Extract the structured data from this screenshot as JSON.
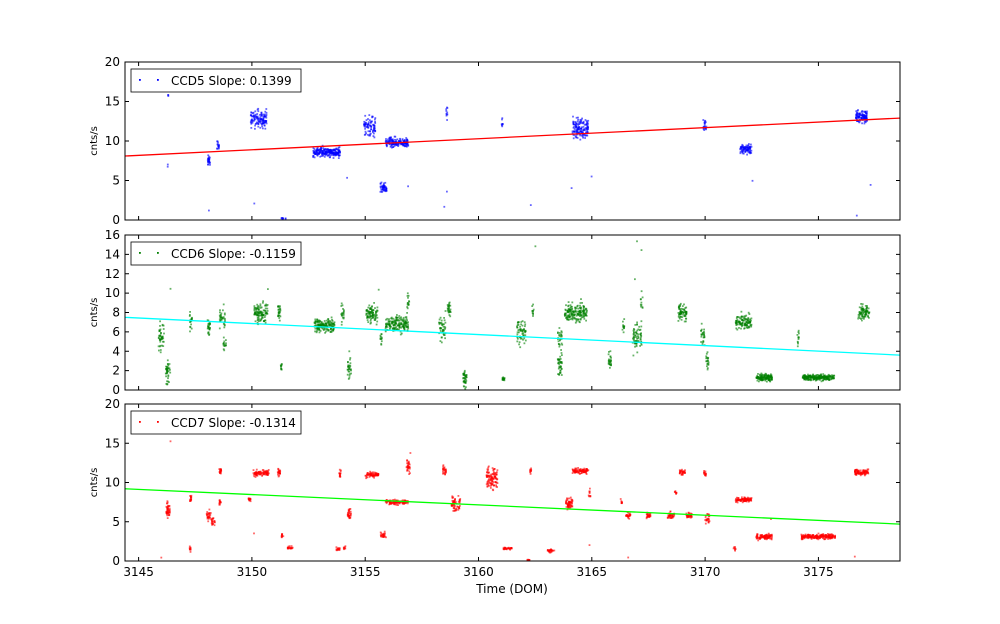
{
  "chart_data": {
    "type": "scatter",
    "xlabel": "Time (DOM)",
    "xlim": [
      3144.4,
      3178.6
    ],
    "xticks": [
      3145,
      3150,
      3155,
      3160,
      3165,
      3170,
      3175
    ],
    "cluster_format": "[x_center, y_center, x_spread, y_spread, n_points]",
    "panels": [
      {
        "name": "CCD5",
        "legend": "CCD5 Slope: 0.1399",
        "legend_position": "top-left",
        "ylabel": "cnts/s",
        "ylim": [
          0,
          20
        ],
        "yticks": [
          0,
          5,
          10,
          15,
          20
        ],
        "point_color": "#0000ff",
        "fit_color": "#ff0000",
        "fit": {
          "x0": 3144.4,
          "y0": 8.1,
          "x1": 3178.6,
          "y1": 12.9
        },
        "clusters": [
          [
            3146.3,
            15.7,
            0.02,
            0.2,
            3
          ],
          [
            3146.3,
            6.8,
            0.02,
            0.3,
            2
          ],
          [
            3148.1,
            7.5,
            0.08,
            0.5,
            25
          ],
          [
            3148.5,
            9.5,
            0.05,
            0.5,
            15
          ],
          [
            3150.3,
            12.8,
            0.35,
            0.9,
            120
          ],
          [
            3151.4,
            0.2,
            0.1,
            0.05,
            8
          ],
          [
            3153.3,
            8.6,
            0.6,
            0.5,
            220
          ],
          [
            3155.2,
            11.8,
            0.25,
            1.1,
            80
          ],
          [
            3155.8,
            4.0,
            0.15,
            0.5,
            50
          ],
          [
            3156.4,
            9.8,
            0.5,
            0.5,
            160
          ],
          [
            3158.6,
            13.5,
            0.03,
            0.6,
            10
          ],
          [
            3161.05,
            12.3,
            0.03,
            0.4,
            8
          ],
          [
            3164.5,
            11.6,
            0.35,
            1.0,
            140
          ],
          [
            3170.0,
            12.0,
            0.08,
            0.6,
            20
          ],
          [
            3171.8,
            9.0,
            0.25,
            0.6,
            80
          ],
          [
            3176.9,
            13.1,
            0.25,
            0.7,
            110
          ],
          [
            3148.1,
            1.2,
            0.01,
            0.05,
            1
          ],
          [
            3150.1,
            2.1,
            0.01,
            0.05,
            1
          ],
          [
            3154.2,
            5.3,
            0.01,
            0.05,
            1
          ],
          [
            3158.5,
            1.6,
            0.01,
            0.05,
            1
          ],
          [
            3158.6,
            3.6,
            0.01,
            0.05,
            1
          ],
          [
            3162.3,
            1.9,
            0.01,
            0.05,
            1
          ],
          [
            3164.1,
            4.1,
            0.01,
            0.05,
            1
          ],
          [
            3165.0,
            5.5,
            0.01,
            0.05,
            1
          ],
          [
            3156.9,
            4.3,
            0.01,
            0.05,
            1
          ],
          [
            3176.7,
            0.6,
            0.01,
            0.05,
            1
          ],
          [
            3177.3,
            4.4,
            0.01,
            0.05,
            1
          ],
          [
            3172.1,
            5.0,
            0.01,
            0.05,
            1
          ]
        ]
      },
      {
        "name": "CCD6",
        "legend": "CCD6 Slope: -0.1159",
        "legend_position": "top-left",
        "ylabel": "cnts/s",
        "ylim": [
          0,
          16
        ],
        "yticks": [
          0,
          2,
          4,
          6,
          8,
          10,
          12,
          14,
          16
        ],
        "point_color": "#008000",
        "fit_color": "#00ffff",
        "fit": {
          "x0": 3144.4,
          "y0": 7.5,
          "x1": 3178.6,
          "y1": 3.6
        },
        "clusters": [
          [
            3146.0,
            5.5,
            0.12,
            1.5,
            45
          ],
          [
            3146.3,
            1.8,
            0.1,
            1.0,
            40
          ],
          [
            3147.3,
            7.0,
            0.06,
            0.6,
            20
          ],
          [
            3148.1,
            6.5,
            0.06,
            0.7,
            25
          ],
          [
            3148.7,
            7.5,
            0.12,
            0.8,
            35
          ],
          [
            3148.8,
            4.5,
            0.06,
            0.6,
            15
          ],
          [
            3150.4,
            8.0,
            0.3,
            0.8,
            110
          ],
          [
            3151.2,
            8.3,
            0.06,
            0.8,
            25
          ],
          [
            3151.3,
            2.4,
            0.03,
            0.3,
            10
          ],
          [
            3153.2,
            6.6,
            0.45,
            0.6,
            160
          ],
          [
            3154.0,
            8.0,
            0.06,
            0.8,
            20
          ],
          [
            3154.3,
            2.3,
            0.08,
            1.0,
            30
          ],
          [
            3155.3,
            7.8,
            0.25,
            0.7,
            90
          ],
          [
            3155.7,
            5.5,
            0.04,
            0.6,
            12
          ],
          [
            3156.4,
            6.8,
            0.5,
            0.7,
            170
          ],
          [
            3156.9,
            9.0,
            0.05,
            0.9,
            15
          ],
          [
            3158.4,
            6.5,
            0.15,
            1.2,
            45
          ],
          [
            3158.7,
            8.3,
            0.08,
            0.6,
            25
          ],
          [
            3159.4,
            1.2,
            0.08,
            0.8,
            40
          ],
          [
            3161.1,
            1.2,
            0.05,
            0.2,
            15
          ],
          [
            3161.9,
            6.0,
            0.2,
            1.0,
            60
          ],
          [
            3162.4,
            8.0,
            0.04,
            0.5,
            10
          ],
          [
            3163.6,
            2.6,
            0.1,
            1.0,
            40
          ],
          [
            3163.6,
            5.5,
            0.1,
            0.8,
            25
          ],
          [
            3164.3,
            8.0,
            0.5,
            0.8,
            170
          ],
          [
            3165.8,
            3.0,
            0.06,
            0.8,
            25
          ],
          [
            3166.4,
            6.5,
            0.05,
            0.6,
            12
          ],
          [
            3167.0,
            5.5,
            0.2,
            1.4,
            70
          ],
          [
            3167.2,
            9.0,
            0.05,
            0.8,
            10
          ],
          [
            3169.0,
            8.0,
            0.18,
            0.7,
            70
          ],
          [
            3169.9,
            5.5,
            0.08,
            0.9,
            25
          ],
          [
            3170.1,
            3.0,
            0.06,
            0.7,
            20
          ],
          [
            3171.7,
            7.0,
            0.35,
            0.6,
            110
          ],
          [
            3172.6,
            1.3,
            0.35,
            0.3,
            130
          ],
          [
            3174.1,
            5.0,
            0.04,
            0.9,
            12
          ],
          [
            3175.0,
            1.3,
            0.7,
            0.25,
            230
          ],
          [
            3177.0,
            8.0,
            0.25,
            0.6,
            80
          ],
          [
            3146.4,
            10.5,
            0.01,
            0.05,
            1
          ],
          [
            3162.5,
            14.8,
            0.01,
            0.05,
            1
          ],
          [
            3167.0,
            15.3,
            0.01,
            0.05,
            1
          ],
          [
            3167.2,
            14.5,
            0.01,
            0.05,
            1
          ],
          [
            3166.9,
            11.5,
            0.01,
            0.05,
            1
          ],
          [
            3150.7,
            10.4,
            0.01,
            0.05,
            1
          ],
          [
            3155.6,
            10.3,
            0.01,
            0.05,
            1
          ]
        ]
      },
      {
        "name": "CCD7",
        "legend": "CCD7 Slope: -0.1314",
        "legend_position": "top-left",
        "ylabel": "cnts/s",
        "ylim": [
          0,
          20
        ],
        "yticks": [
          0,
          5,
          10,
          15,
          20
        ],
        "point_color": "#ff0000",
        "fit_color": "#00ff00",
        "fit": {
          "x0": 3144.4,
          "y0": 9.2,
          "x1": 3178.6,
          "y1": 4.7
        },
        "clusters": [
          [
            3146.3,
            6.5,
            0.08,
            0.8,
            45
          ],
          [
            3147.3,
            8.0,
            0.05,
            0.4,
            15
          ],
          [
            3147.3,
            1.5,
            0.05,
            0.3,
            10
          ],
          [
            3148.1,
            5.8,
            0.1,
            0.6,
            30
          ],
          [
            3148.3,
            5.0,
            0.08,
            0.6,
            20
          ],
          [
            3148.6,
            11.5,
            0.05,
            0.3,
            20
          ],
          [
            3148.6,
            7.5,
            0.04,
            0.4,
            12
          ],
          [
            3149.9,
            7.8,
            0.05,
            0.3,
            15
          ],
          [
            3150.4,
            11.2,
            0.35,
            0.3,
            90
          ],
          [
            3151.2,
            11.3,
            0.06,
            0.4,
            25
          ],
          [
            3151.35,
            3.3,
            0.04,
            0.2,
            10
          ],
          [
            3151.7,
            1.7,
            0.12,
            0.15,
            20
          ],
          [
            3153.8,
            1.5,
            0.08,
            0.15,
            15
          ],
          [
            3154.1,
            1.7,
            0.05,
            0.2,
            8
          ],
          [
            3153.9,
            11.2,
            0.05,
            0.4,
            15
          ],
          [
            3154.3,
            6.0,
            0.08,
            0.6,
            30
          ],
          [
            3155.3,
            11.0,
            0.3,
            0.3,
            70
          ],
          [
            3155.8,
            3.2,
            0.12,
            0.3,
            25
          ],
          [
            3156.4,
            7.5,
            0.5,
            0.25,
            110
          ],
          [
            3156.9,
            12.0,
            0.08,
            0.8,
            30
          ],
          [
            3158.5,
            11.5,
            0.07,
            0.5,
            25
          ],
          [
            3159.0,
            7.3,
            0.2,
            0.8,
            60
          ],
          [
            3160.6,
            10.5,
            0.25,
            1.2,
            110
          ],
          [
            3161.3,
            1.6,
            0.2,
            0.15,
            30
          ],
          [
            3162.2,
            0.1,
            0.05,
            0.05,
            10
          ],
          [
            3162.3,
            11.5,
            0.03,
            0.3,
            10
          ],
          [
            3163.2,
            1.3,
            0.15,
            0.15,
            25
          ],
          [
            3164.0,
            7.3,
            0.15,
            0.7,
            60
          ],
          [
            3164.5,
            11.5,
            0.35,
            0.3,
            90
          ],
          [
            3164.9,
            8.5,
            0.04,
            0.8,
            10
          ],
          [
            3166.3,
            7.5,
            0.04,
            0.3,
            8
          ],
          [
            3166.6,
            5.8,
            0.1,
            0.3,
            25
          ],
          [
            3167.5,
            5.8,
            0.1,
            0.25,
            25
          ],
          [
            3168.5,
            5.8,
            0.15,
            0.3,
            35
          ],
          [
            3168.7,
            8.7,
            0.04,
            0.3,
            8
          ],
          [
            3169.0,
            11.3,
            0.12,
            0.3,
            30
          ],
          [
            3169.3,
            5.8,
            0.15,
            0.3,
            35
          ],
          [
            3170.0,
            11.2,
            0.05,
            0.3,
            15
          ],
          [
            3170.1,
            5.5,
            0.1,
            0.6,
            25
          ],
          [
            3171.3,
            1.6,
            0.05,
            0.2,
            8
          ],
          [
            3171.7,
            7.8,
            0.35,
            0.25,
            90
          ],
          [
            3172.6,
            3.1,
            0.35,
            0.3,
            100
          ],
          [
            3175.0,
            3.1,
            0.75,
            0.25,
            220
          ],
          [
            3176.9,
            11.3,
            0.3,
            0.3,
            90
          ],
          [
            3146.4,
            15.2,
            0.01,
            0.05,
            1
          ],
          [
            3146.0,
            0.5,
            0.01,
            0.05,
            1
          ],
          [
            3150.1,
            3.5,
            0.01,
            0.05,
            1
          ],
          [
            3157.0,
            13.8,
            0.01,
            0.05,
            1
          ],
          [
            3164.9,
            2.0,
            0.01,
            0.05,
            1
          ],
          [
            3166.6,
            0.4,
            0.01,
            0.05,
            1
          ],
          [
            3172.9,
            5.3,
            0.01,
            0.05,
            1
          ],
          [
            3176.6,
            0.5,
            0.01,
            0.05,
            1
          ]
        ]
      }
    ]
  }
}
